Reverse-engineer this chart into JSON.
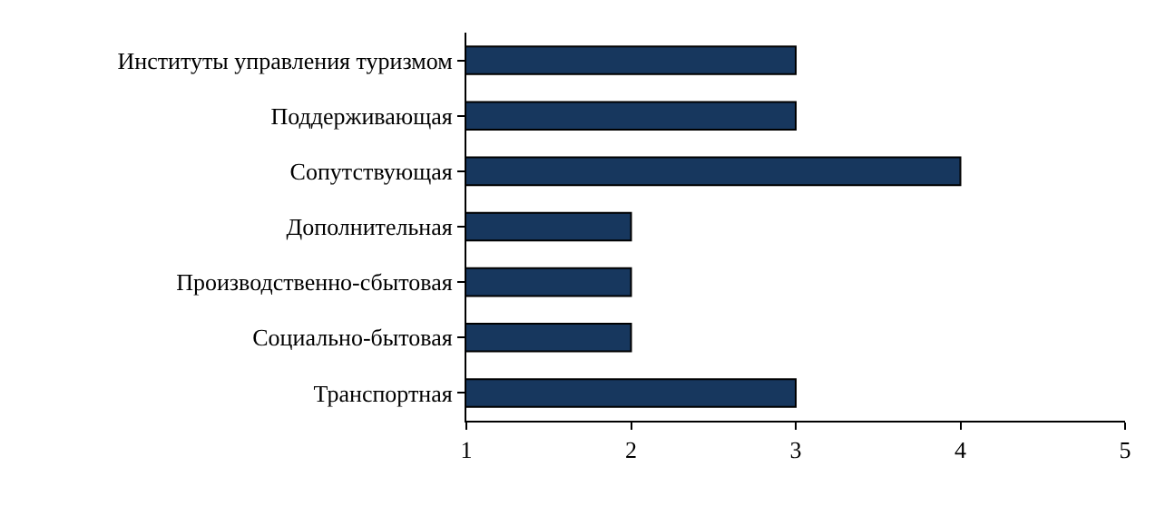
{
  "chart_data": {
    "type": "bar",
    "orientation": "horizontal",
    "categories": [
      "Институты управления туризмом",
      "Поддерживающая",
      "Сопутствующая",
      "Дополнительная",
      "Производственно-сбытовая",
      "Социально-бытовая",
      "Транспортная"
    ],
    "values": [
      3,
      3,
      4,
      2,
      2,
      2,
      3
    ],
    "color": "#17375e",
    "xlim": [
      1,
      5
    ],
    "xticks": [
      1,
      2,
      3,
      4,
      5
    ],
    "grid": false,
    "legend": false
  }
}
